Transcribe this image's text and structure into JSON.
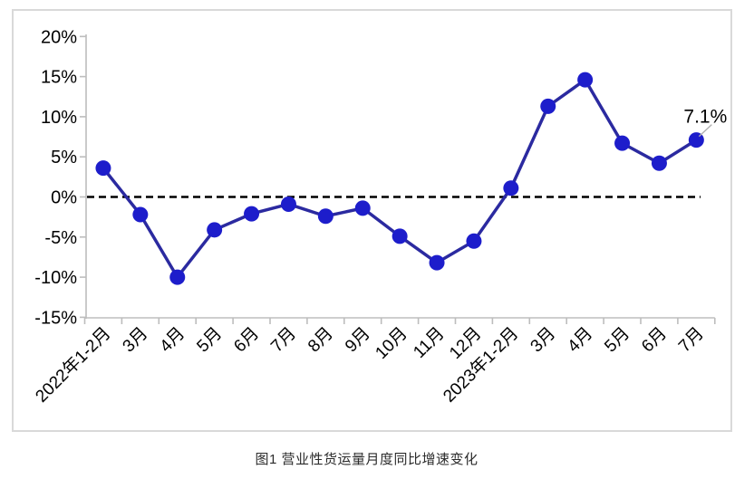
{
  "figure": {
    "caption": "图1 营业性货运量月度同比增速变化"
  },
  "chart_data": {
    "type": "line",
    "title": "图1 营业性货运量月度同比增速变化",
    "categories": [
      "2022年1-2月",
      "3月",
      "4月",
      "5月",
      "6月",
      "7月",
      "8月",
      "9月",
      "10月",
      "11月",
      "12月",
      "2023年1-2月",
      "3月",
      "4月",
      "5月",
      "6月",
      "7月"
    ],
    "series": [
      {
        "name": "营业性货运量月度同比增速",
        "values": [
          3.6,
          -2.2,
          -10.0,
          -4.1,
          -2.1,
          -0.9,
          -2.4,
          -1.4,
          -4.9,
          -8.2,
          -5.5,
          1.1,
          11.3,
          14.6,
          6.7,
          4.2,
          7.1
        ]
      }
    ],
    "xlabel": "",
    "ylabel": "",
    "ylim": [
      -15,
      20
    ],
    "ytick_step": 5,
    "ytick_labels": [
      "20%",
      "15%",
      "10%",
      "5%",
      "0%",
      "-5%",
      "-10%",
      "-15%"
    ],
    "grid": false,
    "legend": false,
    "zero_line_style": "dashed",
    "annotation": {
      "text": "7.1%",
      "point_index": 16
    },
    "colors": {
      "line": "#2b2aa0",
      "marker": "#1d1dcb",
      "zero_line": "#000000",
      "axis": "#bdbdbd",
      "tick_text": "#000000",
      "frame_border": "#d9d9d9",
      "leader": "#b0b0b0",
      "caption_text": "#2b2b2b"
    }
  }
}
